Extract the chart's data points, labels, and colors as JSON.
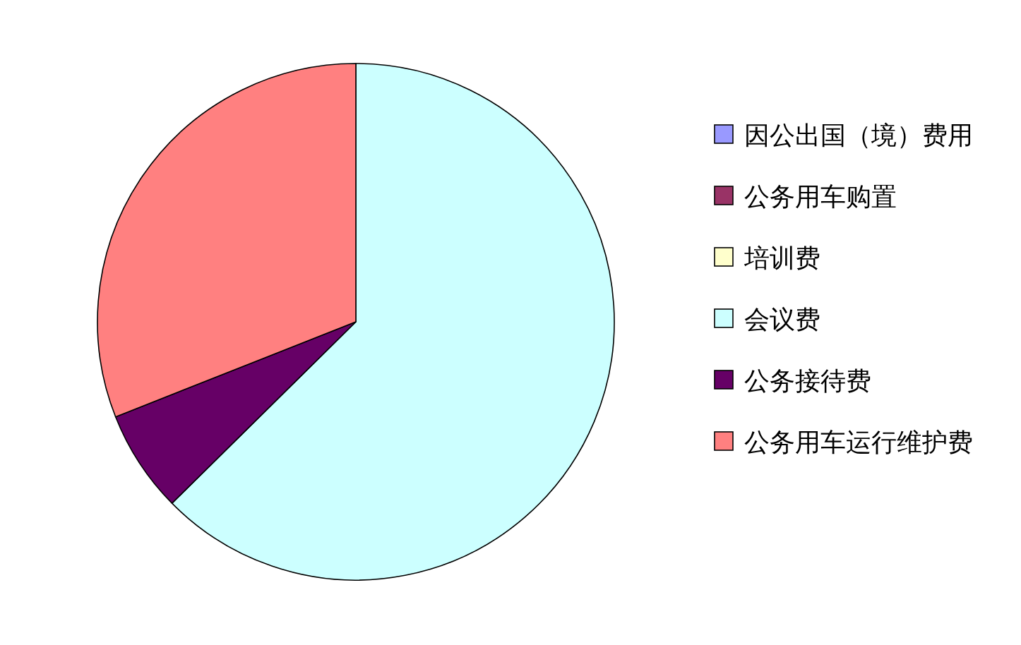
{
  "chart_data": {
    "type": "pie",
    "categories": [
      "因公出国（境）费用",
      "公务用车购置",
      "培训费",
      "会议费",
      "公务接待费",
      "公务用车运行维护费"
    ],
    "values": [
      0,
      0,
      0,
      62.6,
      6.4,
      31.0
    ],
    "colors": [
      "#9999ff",
      "#993366",
      "#ffffcc",
      "#ccffff",
      "#660066",
      "#ff8080"
    ],
    "legend": "right"
  }
}
